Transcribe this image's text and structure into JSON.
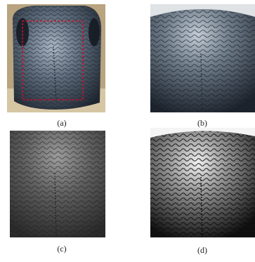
{
  "figure": {
    "panels": [
      {
        "id": "a",
        "caption": "(a)",
        "description_icon": "cattle-muzzle-photo-with-roi-box",
        "roi_color": "#c8102e"
      },
      {
        "id": "b",
        "caption": "(b)",
        "description_icon": "muzzle-roi-crop"
      },
      {
        "id": "c",
        "caption": "(c)",
        "description_icon": "muzzle-roi-grayscale"
      },
      {
        "id": "d",
        "caption": "(d)",
        "description_icon": "muzzle-roi-enhanced"
      }
    ]
  },
  "colors": {
    "skin_dark": "#2b3440",
    "skin_light": "#8d9aa8",
    "background_tan": "#b8a47e",
    "gray_dark": "#3a3a3a",
    "gray_light": "#d8d8d8"
  }
}
